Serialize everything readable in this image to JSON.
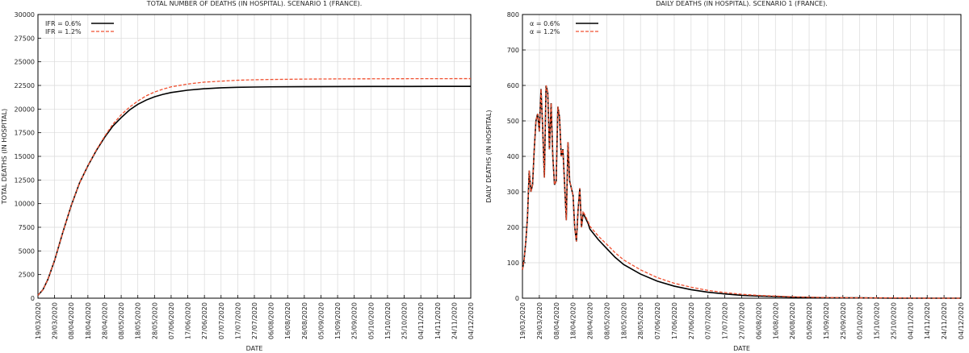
{
  "chart_data": [
    {
      "type": "line",
      "title": "TOTAL NUMBER OF DEATHS (IN HOSPITAL). SCENARIO 1 (FRANCE).",
      "xlabel": "DATE",
      "ylabel": "TOTAL DEATHS (IN HOSPITAL)",
      "x_ticks": [
        "19/03/2020",
        "29/03/2020",
        "08/04/2020",
        "18/04/2020",
        "28/04/2020",
        "08/05/2020",
        "18/05/2020",
        "28/05/2020",
        "07/06/2020",
        "17/06/2020",
        "27/06/2020",
        "07/07/2020",
        "17/07/2020",
        "27/07/2020",
        "06/08/2020",
        "16/08/2020",
        "26/08/2020",
        "05/09/2020",
        "15/09/2020",
        "25/09/2020",
        "05/10/2020",
        "15/10/2020",
        "25/10/2020",
        "04/11/2020",
        "14/11/2020",
        "24/11/2020",
        "04/12/2020"
      ],
      "y_ticks": [
        "0",
        "2500",
        "5000",
        "7500",
        "10000",
        "12500",
        "15000",
        "17500",
        "20000",
        "22500",
        "25000",
        "27500",
        "30000"
      ],
      "ylim": [
        0,
        30000
      ],
      "grid": true,
      "legend_position": "top-left",
      "x_day_range": [
        0,
        260
      ],
      "series": [
        {
          "name": "IFR = 0.6%",
          "color": "#000000",
          "style": "solid",
          "x": [
            0,
            3,
            6,
            10,
            15,
            20,
            25,
            30,
            35,
            40,
            45,
            50,
            55,
            60,
            65,
            70,
            75,
            80,
            90,
            100,
            110,
            120,
            130,
            140,
            160,
            180,
            200,
            220,
            240,
            260
          ],
          "y": [
            300,
            900,
            2000,
            4000,
            7000,
            9800,
            12200,
            14000,
            15600,
            17000,
            18200,
            19100,
            19900,
            20500,
            20950,
            21300,
            21550,
            21750,
            22000,
            22150,
            22250,
            22300,
            22330,
            22350,
            22370,
            22380,
            22385,
            22390,
            22395,
            22400
          ]
        },
        {
          "name": "IFR = 1.2%",
          "color": "#f05030",
          "style": "dashed",
          "x": [
            0,
            3,
            6,
            10,
            15,
            20,
            25,
            30,
            35,
            40,
            45,
            50,
            55,
            60,
            65,
            70,
            75,
            80,
            90,
            100,
            110,
            120,
            130,
            140,
            160,
            180,
            200,
            220,
            240,
            260
          ],
          "y": [
            300,
            900,
            2000,
            4000,
            7000,
            9800,
            12200,
            14000,
            15650,
            17100,
            18400,
            19400,
            20200,
            20850,
            21400,
            21800,
            22100,
            22350,
            22650,
            22850,
            22950,
            23050,
            23100,
            23130,
            23170,
            23190,
            23200,
            23210,
            23215,
            23220
          ]
        }
      ]
    },
    {
      "type": "line",
      "title": "DAILY DEATHS (IN HOSPITAL). SCENARIO 1 (FRANCE).",
      "xlabel": "DATE",
      "ylabel": "DAILY DEATHS (IN HOSPITAL)",
      "x_ticks": [
        "19/03/2020",
        "29/03/2020",
        "08/04/2020",
        "18/04/2020",
        "28/04/2020",
        "08/05/2020",
        "18/05/2020",
        "28/05/2020",
        "07/06/2020",
        "17/06/2020",
        "27/06/2020",
        "07/07/2020",
        "17/07/2020",
        "27/07/2020",
        "06/08/2020",
        "16/08/2020",
        "26/08/2020",
        "05/09/2020",
        "15/09/2020",
        "25/09/2020",
        "05/10/2020",
        "15/10/2020",
        "25/10/2020",
        "04/11/2020",
        "14/11/2020",
        "24/11/2020",
        "04/12/2020"
      ],
      "y_ticks": [
        "0",
        "100",
        "200",
        "300",
        "400",
        "500",
        "600",
        "700",
        "800"
      ],
      "ylim": [
        0,
        800
      ],
      "grid": true,
      "legend_position": "top-left",
      "x_day_range": [
        0,
        260
      ],
      "series": [
        {
          "name": "α = 0.6%",
          "color": "#000000",
          "style": "solid",
          "x": [
            0,
            1,
            2,
            3,
            4,
            5,
            6,
            7,
            8,
            9,
            10,
            11,
            12,
            13,
            14,
            15,
            16,
            17,
            18,
            19,
            20,
            21,
            22,
            23,
            24,
            25,
            26,
            27,
            28,
            29,
            30,
            31,
            32,
            33,
            34,
            35,
            36,
            37,
            38,
            39,
            40,
            45,
            50,
            55,
            60,
            70,
            80,
            90,
            100,
            110,
            120,
            130,
            140,
            160,
            180,
            200,
            220,
            240,
            260
          ],
          "y": [
            80,
            110,
            160,
            230,
            360,
            300,
            320,
            420,
            500,
            520,
            470,
            590,
            480,
            340,
            600,
            580,
            420,
            550,
            400,
            320,
            330,
            540,
            510,
            400,
            420,
            320,
            220,
            440,
            330,
            310,
            290,
            200,
            160,
            250,
            310,
            200,
            240,
            230,
            220,
            210,
            195,
            165,
            140,
            115,
            95,
            68,
            48,
            34,
            24,
            17,
            12,
            8,
            6,
            3,
            1,
            1,
            0,
            0,
            0
          ]
        },
        {
          "name": "α = 1.2%",
          "color": "#f05030",
          "style": "dashed",
          "x": [
            0,
            1,
            2,
            3,
            4,
            5,
            6,
            7,
            8,
            9,
            10,
            11,
            12,
            13,
            14,
            15,
            16,
            17,
            18,
            19,
            20,
            21,
            22,
            23,
            24,
            25,
            26,
            27,
            28,
            29,
            30,
            31,
            32,
            33,
            34,
            35,
            36,
            37,
            38,
            39,
            40,
            45,
            50,
            55,
            60,
            70,
            80,
            90,
            100,
            110,
            120,
            130,
            140,
            160,
            180,
            200,
            220,
            240,
            260
          ],
          "y": [
            80,
            110,
            160,
            230,
            360,
            300,
            320,
            420,
            500,
            520,
            470,
            590,
            480,
            340,
            600,
            580,
            420,
            550,
            400,
            320,
            330,
            540,
            510,
            400,
            420,
            320,
            220,
            440,
            330,
            310,
            290,
            200,
            160,
            250,
            310,
            200,
            245,
            235,
            225,
            215,
            203,
            175,
            152,
            128,
            108,
            80,
            58,
            42,
            31,
            22,
            16,
            11,
            8,
            4,
            2,
            1,
            1,
            0,
            0
          ]
        }
      ]
    }
  ]
}
